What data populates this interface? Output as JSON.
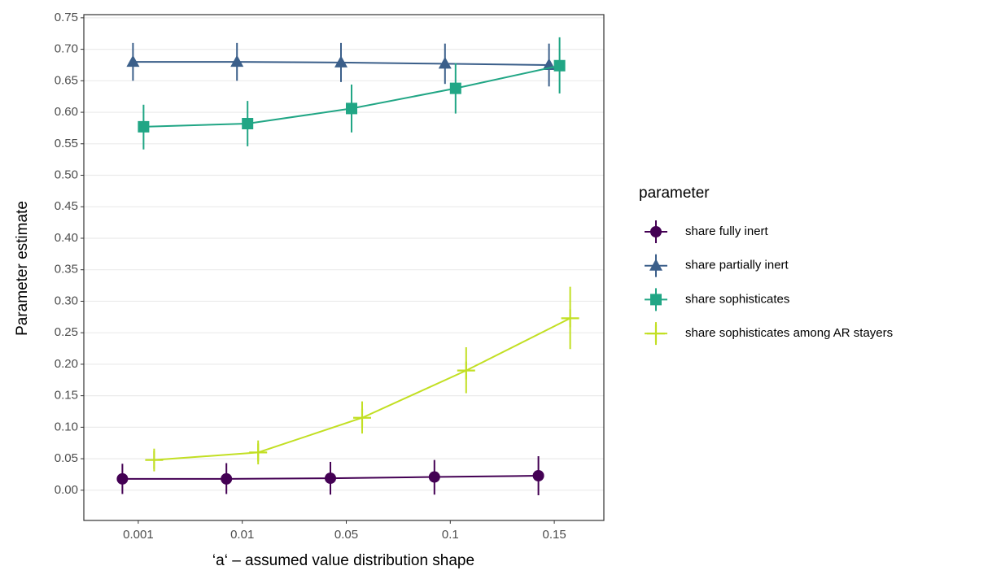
{
  "chart_data": {
    "type": "pointrange",
    "x_label": "‘a‘ – assumed value distribution shape",
    "y_label": "Parameter estimate",
    "legend_title": "parameter",
    "legend_position": "right",
    "grid": true,
    "categories": [
      "0.001",
      "0.01",
      "0.05",
      "0.1",
      "0.15"
    ],
    "ylim": [
      -0.048,
      0.755
    ],
    "yticks": [
      {
        "value": 0,
        "label": "0.00"
      },
      {
        "value": 0.05,
        "label": "0.05"
      },
      {
        "value": 0.1,
        "label": "0.10"
      },
      {
        "value": 0.15,
        "label": "0.15"
      },
      {
        "value": 0.2,
        "label": "0.20"
      },
      {
        "value": 0.25,
        "label": "0.25"
      },
      {
        "value": 0.3,
        "label": "0.30"
      },
      {
        "value": 0.35,
        "label": "0.35"
      },
      {
        "value": 0.4,
        "label": "0.40"
      },
      {
        "value": 0.45,
        "label": "0.45"
      },
      {
        "value": 0.5,
        "label": "0.50"
      },
      {
        "value": 0.55,
        "label": "0.55"
      },
      {
        "value": 0.6,
        "label": "0.60"
      },
      {
        "value": 0.65,
        "label": "0.65"
      },
      {
        "value": 0.7,
        "label": "0.70"
      },
      {
        "value": 0.75,
        "label": "0.75"
      }
    ],
    "series": [
      {
        "name": "share fully inert",
        "color": "#440154",
        "shape": "circle",
        "values": [
          0.018,
          0.018,
          0.019,
          0.021,
          0.023
        ],
        "lower": [
          -0.006,
          -0.006,
          -0.007,
          -0.007,
          -0.008
        ],
        "upper": [
          0.042,
          0.043,
          0.045,
          0.048,
          0.054
        ]
      },
      {
        "name": "share partially inert",
        "color": "#3b5f8a",
        "shape": "triangle",
        "values": [
          0.68,
          0.68,
          0.679,
          0.677,
          0.675
        ],
        "lower": [
          0.65,
          0.65,
          0.648,
          0.645,
          0.641
        ],
        "upper": [
          0.71,
          0.71,
          0.71,
          0.709,
          0.709
        ]
      },
      {
        "name": "share sophisticates",
        "color": "#21a685",
        "shape": "square",
        "values": [
          0.577,
          0.582,
          0.606,
          0.638,
          0.674
        ],
        "lower": [
          0.541,
          0.546,
          0.568,
          0.598,
          0.63
        ],
        "upper": [
          0.612,
          0.618,
          0.644,
          0.678,
          0.719
        ]
      },
      {
        "name": "share sophisticates among AR stayers",
        "color": "#c2df23",
        "shape": "cross",
        "values": [
          0.048,
          0.06,
          0.115,
          0.19,
          0.273
        ],
        "lower": [
          0.03,
          0.041,
          0.09,
          0.154,
          0.224
        ],
        "upper": [
          0.066,
          0.079,
          0.141,
          0.227,
          0.323
        ]
      }
    ]
  }
}
